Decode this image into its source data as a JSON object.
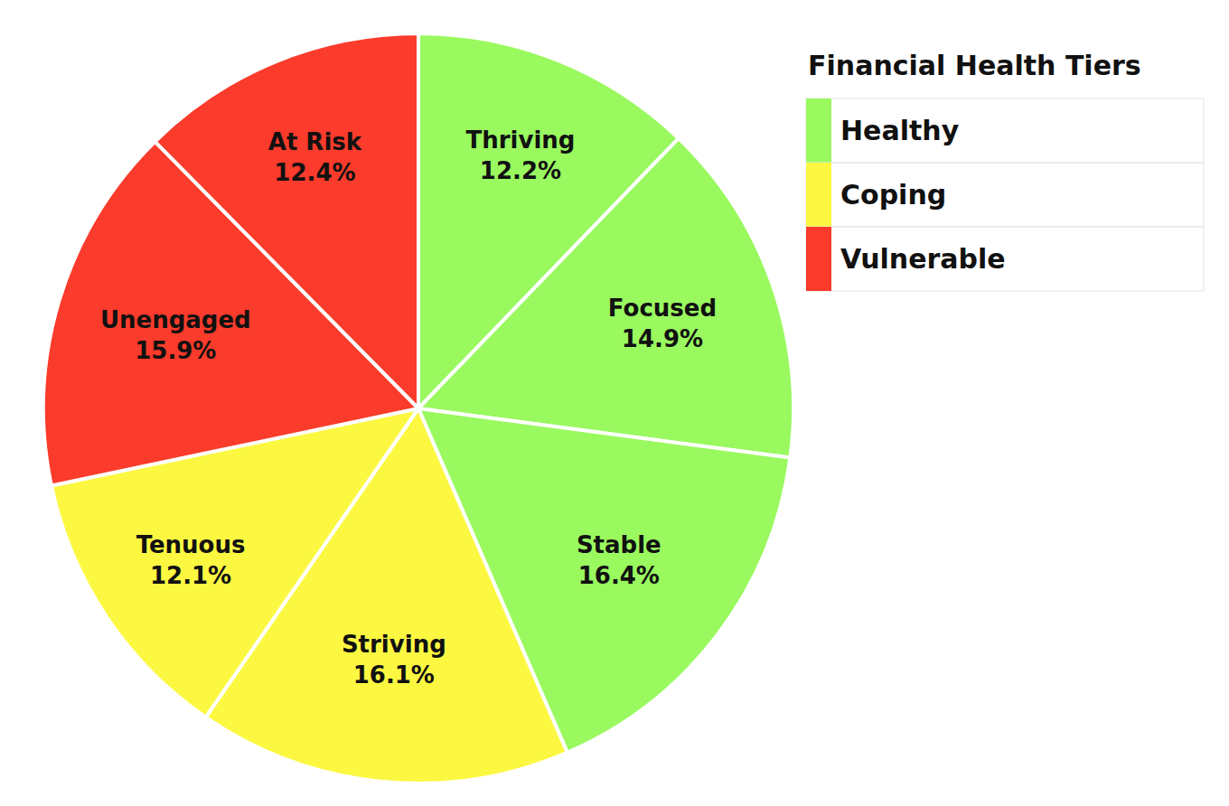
{
  "chart_data": {
    "type": "pie",
    "legend_title": "Financial Health Tiers",
    "categories": [
      "Thriving",
      "Focused",
      "Stable",
      "Striving",
      "Tenuous",
      "Unengaged",
      "At Risk"
    ],
    "values": [
      12.2,
      14.9,
      16.4,
      16.1,
      12.1,
      15.9,
      12.4
    ],
    "value_labels": [
      "12.2%",
      "14.9%",
      "16.4%",
      "16.1%",
      "12.1%",
      "15.9%",
      "12.4%"
    ],
    "tiers": [
      "Healthy",
      "Healthy",
      "Healthy",
      "Coping",
      "Coping",
      "Vulnerable",
      "Vulnerable"
    ],
    "series": [
      {
        "name": "Healthy",
        "color": "#99f95f"
      },
      {
        "name": "Coping",
        "color": "#fcf842"
      },
      {
        "name": "Vulnerable",
        "color": "#fb3b2b"
      }
    ],
    "data_labels": true,
    "legend": "top right"
  }
}
